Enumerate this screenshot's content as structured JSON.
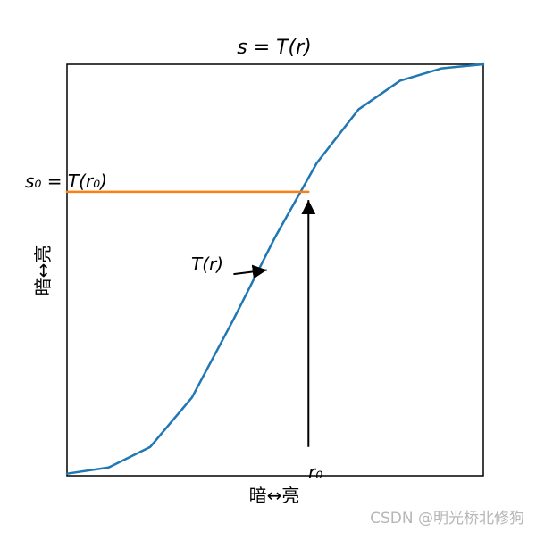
{
  "chart_data": {
    "type": "line",
    "title": "s = T(r)",
    "xlabel": "暗↔亮",
    "ylabel": "暗↔亮",
    "xlim": [
      0,
      1
    ],
    "ylim": [
      0,
      1
    ],
    "grid": false,
    "series": [
      {
        "kind": "sigmoid-curve",
        "color": "#1f77b4",
        "x": [
          0.0,
          0.1,
          0.2,
          0.3,
          0.4,
          0.5,
          0.6,
          0.7,
          0.8,
          0.9,
          1.0
        ],
        "y": [
          0.005,
          0.02,
          0.07,
          0.19,
          0.38,
          0.58,
          0.76,
          0.89,
          0.96,
          0.99,
          1.0
        ]
      },
      {
        "kind": "horizontal-line",
        "color": "#ff7f0e",
        "x": [
          0.0,
          0.58
        ],
        "y": [
          0.69,
          0.69
        ]
      }
    ],
    "annotations": {
      "s0_label": "s₀ = T(r₀)",
      "r0_label": "r₀",
      "curve_label": "T(r)",
      "r0_arrow": {
        "x": 0.58,
        "y_from": 0.07,
        "y_to": 0.67
      },
      "curve_arrow": {
        "from": [
          0.4,
          0.49
        ],
        "to": [
          0.48,
          0.5
        ]
      }
    }
  },
  "watermark": "CSDN @明光桥北修狗"
}
